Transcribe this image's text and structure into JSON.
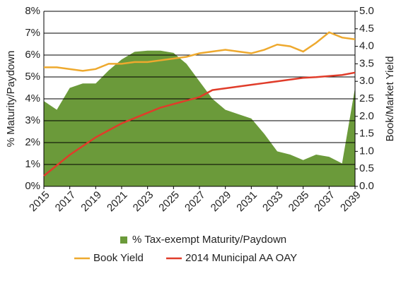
{
  "chart_data": {
    "type": "combo",
    "y_label": "% Maturity/Paydown",
    "y2_label": "Book/Market Yield",
    "x": [
      2015,
      2016,
      2017,
      2018,
      2019,
      2020,
      2021,
      2022,
      2023,
      2024,
      2025,
      2026,
      2027,
      2028,
      2029,
      2030,
      2031,
      2032,
      2033,
      2034,
      2035,
      2036,
      2037,
      2038,
      2039
    ],
    "xlim": [
      2015,
      2039
    ],
    "xticks": [
      2015,
      2017,
      2019,
      2021,
      2023,
      2025,
      2027,
      2029,
      2031,
      2033,
      2035,
      2037,
      2039
    ],
    "ylim": [
      0,
      8
    ],
    "yticks": [
      {
        "value": 0,
        "label": "0%"
      },
      {
        "value": 1,
        "label": "1%"
      },
      {
        "value": 2,
        "label": "2%"
      },
      {
        "value": 3,
        "label": "3%"
      },
      {
        "value": 4,
        "label": "4%"
      },
      {
        "value": 5,
        "label": "5%"
      },
      {
        "value": 6,
        "label": "6%"
      },
      {
        "value": 7,
        "label": "7%"
      },
      {
        "value": 8,
        "label": "8%"
      }
    ],
    "y2lim": [
      0,
      5
    ],
    "y2ticks": [
      {
        "value": 0,
        "label": "0.0"
      },
      {
        "value": 0.5,
        "label": "0.5"
      },
      {
        "value": 1,
        "label": "1.0"
      },
      {
        "value": 1.5,
        "label": "1.5"
      },
      {
        "value": 2,
        "label": "2.0"
      },
      {
        "value": 2.5,
        "label": "2.5"
      },
      {
        "value": 3,
        "label": "3.0"
      },
      {
        "value": 3.5,
        "label": "3.5"
      },
      {
        "value": 4,
        "label": "4.0"
      },
      {
        "value": 4.5,
        "label": "4.5"
      },
      {
        "value": 5,
        "label": "5.0"
      }
    ],
    "grid": true,
    "legend": "bottom",
    "series": [
      {
        "name": "% Tax-exempt Maturity/Paydown",
        "kind": "area",
        "color": "#6b9a3a",
        "values": [
          3.9,
          3.5,
          4.5,
          4.7,
          4.7,
          5.3,
          5.8,
          6.15,
          6.2,
          6.2,
          6.1,
          5.6,
          4.8,
          4.0,
          3.5,
          3.3,
          3.1,
          2.4,
          1.6,
          1.45,
          1.2,
          1.45,
          1.35,
          1.05,
          4.5
        ]
      },
      {
        "name": "Book Yield",
        "kind": "line",
        "axis": "y2",
        "color": "#eea92e",
        "values": [
          3.4,
          3.4,
          3.35,
          3.3,
          3.35,
          3.5,
          3.5,
          3.55,
          3.55,
          3.6,
          3.65,
          3.7,
          3.8,
          3.85,
          3.9,
          3.85,
          3.8,
          3.9,
          4.05,
          4.0,
          3.85,
          4.1,
          4.4,
          4.25,
          4.2
        ]
      },
      {
        "name": "2014 Municipal AA OAY",
        "kind": "line",
        "axis": "y2",
        "color": "#e03c2a",
        "values": [
          0.3,
          0.6,
          0.9,
          1.15,
          1.4,
          1.6,
          1.8,
          1.95,
          2.1,
          2.25,
          2.35,
          2.45,
          2.55,
          2.75,
          2.8,
          2.85,
          2.9,
          2.95,
          3.0,
          3.05,
          3.1,
          3.12,
          3.15,
          3.18,
          3.25
        ]
      }
    ]
  }
}
